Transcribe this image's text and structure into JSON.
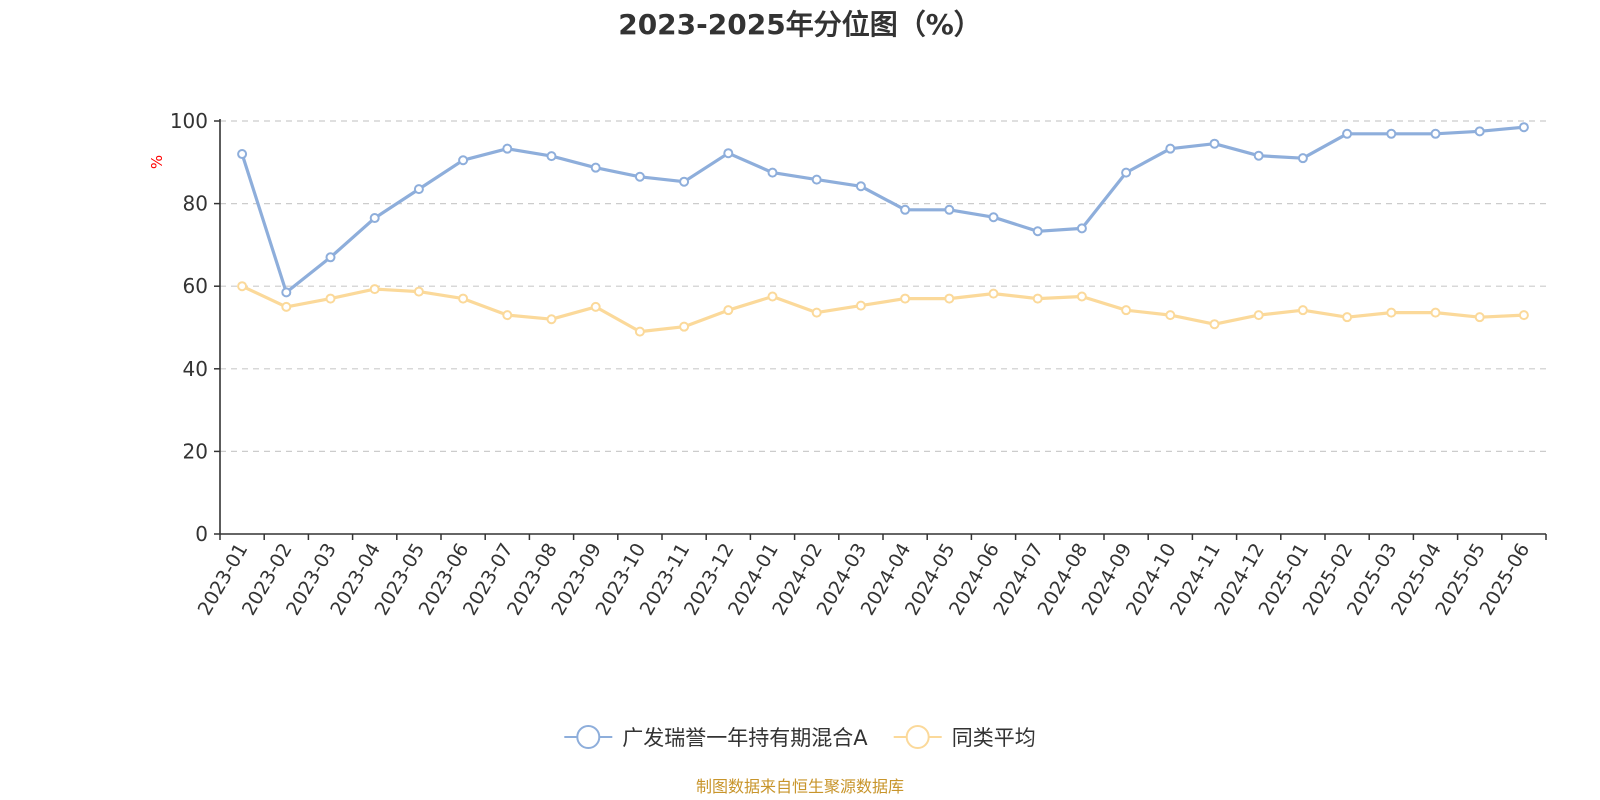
{
  "chart_data": {
    "type": "line",
    "title": "2023-2025年分位图（%）",
    "ylabel": "%",
    "xlabel": "",
    "ylim": [
      0,
      100
    ],
    "yticks": [
      0,
      20,
      40,
      60,
      80,
      100
    ],
    "grid": "horizontal dashed",
    "legend_position": "bottom-center",
    "categories": [
      "2023-01",
      "2023-02",
      "2023-03",
      "2023-04",
      "2023-05",
      "2023-06",
      "2023-07",
      "2023-08",
      "2023-09",
      "2023-10",
      "2023-11",
      "2023-12",
      "2024-01",
      "2024-02",
      "2024-03",
      "2024-04",
      "2024-05",
      "2024-06",
      "2024-07",
      "2024-08",
      "2024-09",
      "2024-10",
      "2024-11",
      "2024-12",
      "2025-01",
      "2025-02",
      "2025-03",
      "2025-04",
      "2025-05",
      "2025-06"
    ],
    "series": [
      {
        "name": "广发瑞誉一年持有期混合A",
        "color": "#8eaedb",
        "values": [
          92,
          58.5,
          67,
          76.5,
          83.5,
          90.5,
          93.3,
          91.5,
          88.7,
          86.5,
          85.3,
          92.2,
          87.5,
          85.8,
          84.2,
          78.5,
          78.5,
          76.7,
          73.3,
          74,
          87.5,
          93.3,
          94.5,
          91.6,
          91,
          96.9,
          96.9,
          96.9,
          97.5,
          98.5
        ]
      },
      {
        "name": "同类平均",
        "color": "#fbd99a",
        "values": [
          60,
          55,
          57,
          59.3,
          58.7,
          57,
          53,
          52,
          55,
          49,
          50.2,
          54.2,
          57.5,
          53.6,
          55.3,
          57,
          57,
          58.2,
          57,
          57.5,
          54.2,
          53,
          50.8,
          53,
          54.2,
          52.5,
          53.6,
          53.6,
          52.5,
          53
        ]
      }
    ]
  },
  "source_text": "制图数据来自恒生聚源数据库",
  "colors": {
    "axis": "#333333",
    "grid": "#cccccc",
    "unit_label": "#ff0000",
    "source_text": "#c8952b"
  }
}
